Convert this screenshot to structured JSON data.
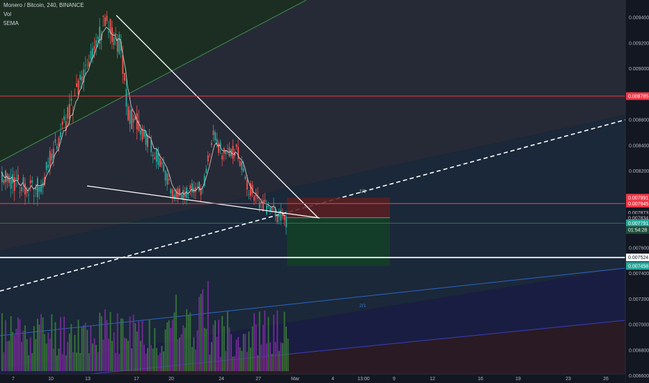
{
  "header": {
    "symbol_line": "Monero / Bitcoin, 240, BINANCE",
    "indicator_1": "Vol",
    "indicator_2": "5EMA"
  },
  "colors": {
    "background": "#131722",
    "up_candle": "#26a69a",
    "down_candle": "#ef5350",
    "resistance_line": "#f23645",
    "support_line": "#ffffff",
    "volume_up": "#3c7a3c",
    "volume_down": "#7b2b9c",
    "ema": "#c8c8c8",
    "stop_zone": "#5a1e22",
    "target_zone": "#133f27",
    "channel_upper_fill": "#1b2e21",
    "channel_line": "#2962ff"
  },
  "chart_data": {
    "type": "candlestick",
    "title": "Monero / Bitcoin, 240, BINANCE",
    "ylim": [
      0.00666,
      0.00945
    ],
    "y_ticks": [
      "0.009400",
      "0.009200",
      "0.009000",
      "0.008600",
      "0.008400",
      "0.008200",
      "0.007600",
      "0.007400",
      "0.007200",
      "0.007000",
      "0.006800",
      "0.006600"
    ],
    "x_ticks": [
      "7",
      "10",
      "13",
      "17",
      "20",
      "24",
      "27",
      "Mar",
      "4",
      "13:00",
      "9",
      "12",
      "16",
      "19",
      "23",
      "26"
    ],
    "price_path": [
      {
        "date": "6",
        "price": 0.00813
      },
      {
        "date": "9",
        "price": 0.00806
      },
      {
        "date": "12",
        "price": 0.0088
      },
      {
        "date": "14",
        "price": 0.00937
      },
      {
        "date": "15",
        "price": 0.00918
      },
      {
        "date": "16",
        "price": 0.00862
      },
      {
        "date": "17",
        "price": 0.00857
      },
      {
        "date": "19",
        "price": 0.00826
      },
      {
        "date": "20",
        "price": 0.00802
      },
      {
        "date": "22",
        "price": 0.00806
      },
      {
        "date": "23",
        "price": 0.00848
      },
      {
        "date": "24",
        "price": 0.00835
      },
      {
        "date": "25",
        "price": 0.00835
      },
      {
        "date": "26",
        "price": 0.00808
      },
      {
        "date": "27",
        "price": 0.00797
      },
      {
        "date": "28",
        "price": 0.00781
      }
    ],
    "horizontal_levels": [
      {
        "name": "resistance",
        "value": 0.008785,
        "label": "0.008785",
        "style": "red"
      },
      {
        "name": "resistance-2",
        "value": 0.007945,
        "label": "0.007945",
        "style": "red"
      },
      {
        "name": "support",
        "value": 0.007524,
        "label": "0.007524",
        "style": "white"
      }
    ],
    "price_labels": [
      {
        "value": 0.007991,
        "label": "0.007991",
        "kind": "stop"
      },
      {
        "value": 0.007873,
        "label": "0.007873",
        "kind": "plain"
      },
      {
        "value": 0.007834,
        "label": "0.007834",
        "kind": "plain"
      },
      {
        "value": 0.007791,
        "label": "0.007791",
        "kind": "current"
      },
      {
        "value": 0.007739,
        "label": "01:54:28",
        "kind": "countdown"
      },
      {
        "value": 0.007458,
        "label": "0.007458",
        "kind": "target"
      }
    ],
    "position": {
      "entry": 0.007834,
      "stop": 0.007991,
      "target": 0.007458,
      "start_date": "Mar",
      "end_date": "7"
    },
    "fib_channel_labels": [
      "1/1",
      "2/1"
    ],
    "grid": false,
    "legend": "top-left"
  }
}
